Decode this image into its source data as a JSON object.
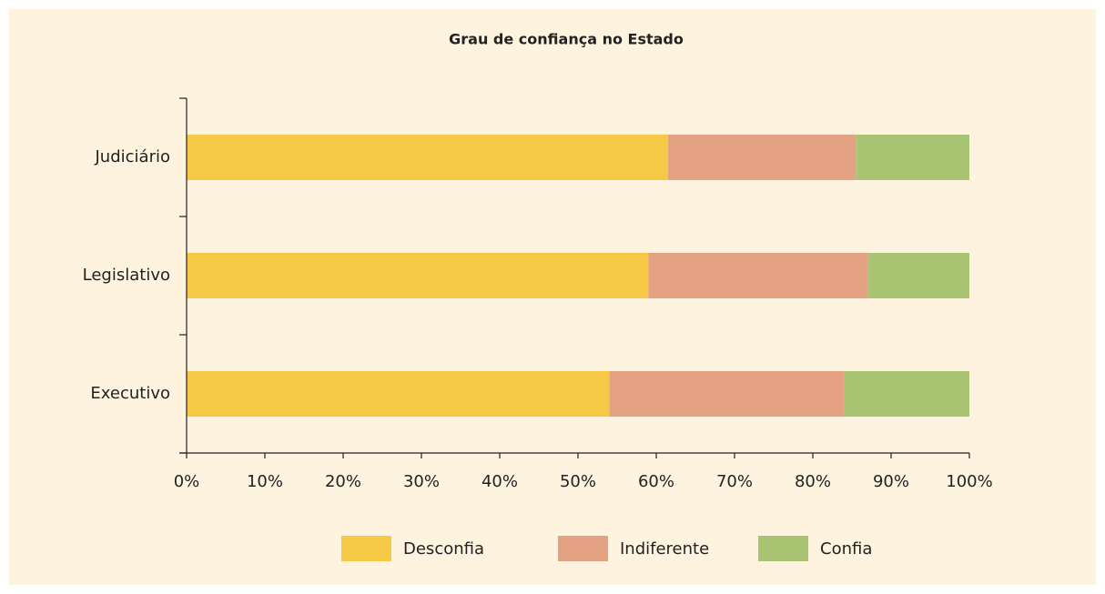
{
  "chart_data": {
    "type": "stacked-bar-horizontal",
    "title": "Grau de confiança no Estado",
    "categories": [
      "Judiciário",
      "Legislativo",
      "Executivo"
    ],
    "series": [
      {
        "name": "Desconfia",
        "color": "#f5c945",
        "values": [
          61.5,
          59,
          54
        ]
      },
      {
        "name": "Indiferente",
        "color": "#e5a283",
        "values": [
          24,
          28,
          30
        ]
      },
      {
        "name": "Confia",
        "color": "#a9c472",
        "values": [
          14.5,
          13,
          16
        ]
      }
    ],
    "xlim": [
      0,
      100
    ],
    "xticks": [
      {
        "value": 0,
        "label": "0%"
      },
      {
        "value": 10,
        "label": "10%"
      },
      {
        "value": 20,
        "label": "20%"
      },
      {
        "value": 30,
        "label": "30%"
      },
      {
        "value": 40,
        "label": "40%"
      },
      {
        "value": 50,
        "label": "50%"
      },
      {
        "value": 60,
        "label": "60%"
      },
      {
        "value": 70,
        "label": "70%"
      },
      {
        "value": 80,
        "label": "80%"
      },
      {
        "value": 90,
        "label": "90%"
      },
      {
        "value": 100,
        "label": "100%"
      }
    ],
    "legend": "bottom"
  }
}
